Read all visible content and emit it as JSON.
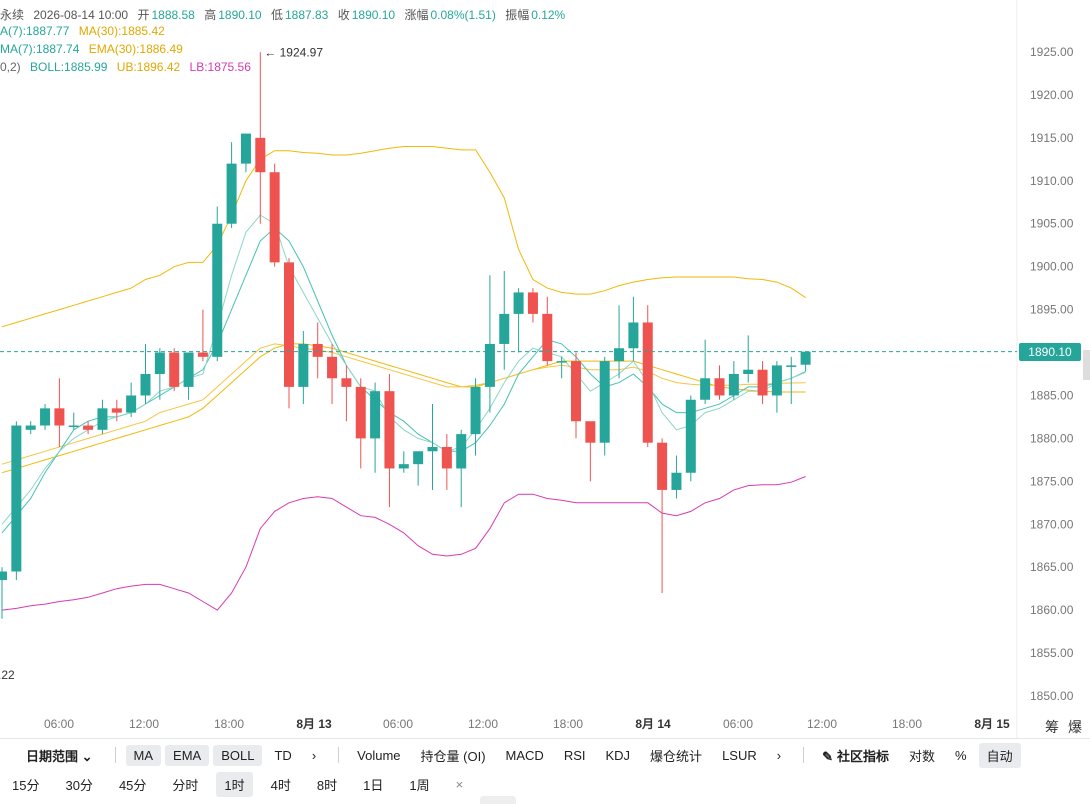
{
  "header": {
    "symbol": "永续",
    "datetime": "2026-08-14 10:00",
    "open_label": "开",
    "open": "1888.58",
    "high_label": "高",
    "high": "1890.10",
    "low_label": "低",
    "low": "1887.83",
    "close_label": "收",
    "close": "1890.10",
    "change_label": "涨幅",
    "change": "0.08%(1.51)",
    "amp_label": "振幅",
    "amp": "0.12%"
  },
  "indicators": {
    "ma7": "A(7):1887.77",
    "ma30": "MA(30):1885.42",
    "ema7": "MA(7):1887.74",
    "ema30": "EMA(30):1886.49",
    "boll_prefix": "0,2)",
    "boll": "BOLL:1885.99",
    "ub": "UB:1896.42",
    "lb": "LB:1875.56"
  },
  "colors": {
    "up": "#26a69a",
    "down": "#ef5350",
    "ma_fast": "#48c1b4",
    "ma_slow": "#f0b90b",
    "ub": "#f0b90b",
    "lb": "#d63bb0",
    "boll_mid": "#8bd7c8",
    "last_line": "#26a69a"
  },
  "chart_data": {
    "type": "candlestick",
    "y_axis": {
      "min": 1850,
      "max": 1925,
      "ticks": [
        "1925.00",
        "1920.00",
        "1915.00",
        "1910.00",
        "1905.00",
        "1900.00",
        "1895.00",
        "1890.00",
        "1885.00",
        "1880.00",
        "1875.00",
        "1870.00",
        "1865.00",
        "1860.00",
        "1855.00",
        "1850.00"
      ]
    },
    "x_axis": {
      "labels": [
        "06:00",
        "12:00",
        "18:00",
        "8月 13",
        "06:00",
        "12:00",
        "18:00",
        "8月 14",
        "06:00",
        "12:00",
        "18:00",
        "8月 15"
      ],
      "bold": [
        "8月 13",
        "8月 14",
        "8月 15"
      ]
    },
    "last_price": "1890.10",
    "high_marker": "1924.97",
    "low_marker": ".22",
    "candles": [
      [
        1863.5,
        1864.5,
        1859.0,
        1865.0
      ],
      [
        1864.5,
        1881.5,
        1863.5,
        1882.0
      ],
      [
        1881.0,
        1881.5,
        1880.5,
        1882.0
      ],
      [
        1881.5,
        1883.5,
        1881.0,
        1884.0
      ],
      [
        1883.5,
        1881.5,
        1879.0,
        1887.0
      ],
      [
        1881.5,
        1881.5,
        1881.0,
        1883.0
      ],
      [
        1881.5,
        1881.0,
        1880.5,
        1882.0
      ],
      [
        1881.0,
        1883.5,
        1880.5,
        1884.5
      ],
      [
        1883.5,
        1883.0,
        1882.0,
        1884.5
      ],
      [
        1883.0,
        1885.0,
        1882.5,
        1886.5
      ],
      [
        1885.0,
        1887.5,
        1884.0,
        1891.0
      ],
      [
        1887.5,
        1890.0,
        1884.5,
        1890.5
      ],
      [
        1890.0,
        1886.0,
        1885.5,
        1890.5
      ],
      [
        1886.0,
        1890.0,
        1884.5,
        1890.0
      ],
      [
        1890.0,
        1889.5,
        1889.0,
        1895.0
      ],
      [
        1889.5,
        1905.0,
        1889.0,
        1907.0
      ],
      [
        1905.0,
        1912.0,
        1904.5,
        1914.5
      ],
      [
        1912.0,
        1915.5,
        1911.0,
        1915.5
      ],
      [
        1915.0,
        1911.0,
        1905.0,
        1924.97
      ],
      [
        1911.0,
        1900.5,
        1900.0,
        1912.0
      ],
      [
        1900.5,
        1886.0,
        1883.5,
        1901.0
      ],
      [
        1886.0,
        1891.0,
        1884.0,
        1892.5
      ],
      [
        1891.0,
        1889.5,
        1887.0,
        1893.5
      ],
      [
        1889.5,
        1887.0,
        1884.0,
        1891.0
      ],
      [
        1887.0,
        1886.0,
        1882.0,
        1888.5
      ],
      [
        1886.0,
        1880.0,
        1876.5,
        1887.0
      ],
      [
        1880.0,
        1885.5,
        1876.0,
        1886.5
      ],
      [
        1885.5,
        1876.5,
        1872.0,
        1887.5
      ],
      [
        1876.5,
        1877.0,
        1876.0,
        1878.5
      ],
      [
        1877.0,
        1878.5,
        1874.5,
        1878.5
      ],
      [
        1878.5,
        1879.0,
        1874.0,
        1884.0
      ],
      [
        1879.0,
        1876.5,
        1874.0,
        1880.5
      ],
      [
        1876.5,
        1880.5,
        1872.0,
        1881.0
      ],
      [
        1880.5,
        1886.0,
        1878.0,
        1887.0
      ],
      [
        1886.0,
        1891.0,
        1883.0,
        1899.0
      ],
      [
        1891.0,
        1894.5,
        1888.0,
        1899.5
      ],
      [
        1894.5,
        1897.0,
        1890.0,
        1897.5
      ],
      [
        1897.0,
        1894.5,
        1893.5,
        1897.5
      ],
      [
        1894.5,
        1889.0,
        1888.5,
        1896.5
      ],
      [
        1889.0,
        1889.0,
        1887.0,
        1889.5
      ],
      [
        1889.0,
        1882.0,
        1880.0,
        1890.0
      ],
      [
        1882.0,
        1879.5,
        1875.0,
        1881.5
      ],
      [
        1879.5,
        1889.0,
        1878.0,
        1889.5
      ],
      [
        1889.0,
        1890.5,
        1887.0,
        1895.5
      ],
      [
        1890.5,
        1893.5,
        1889.0,
        1896.5
      ],
      [
        1893.5,
        1879.5,
        1879.0,
        1895.5
      ],
      [
        1879.5,
        1874.0,
        1862.0,
        1880.0
      ],
      [
        1874.0,
        1876.0,
        1873.0,
        1878.0
      ],
      [
        1876.0,
        1884.5,
        1875.0,
        1885.0
      ],
      [
        1884.5,
        1887.0,
        1884.0,
        1891.5
      ],
      [
        1887.0,
        1885.0,
        1884.5,
        1888.5
      ],
      [
        1885.0,
        1887.5,
        1884.5,
        1889.0
      ],
      [
        1887.5,
        1888.0,
        1886.5,
        1892.0
      ],
      [
        1888.0,
        1885.0,
        1884.0,
        1889.0
      ],
      [
        1885.0,
        1888.5,
        1883.0,
        1889.0
      ],
      [
        1888.5,
        1888.5,
        1884.0,
        1889.5
      ],
      [
        1888.58,
        1890.1,
        1887.83,
        1890.1
      ]
    ],
    "ma_fast": [
      1869,
      1871,
      1873,
      1876,
      1878.5,
      1881,
      1882,
      1882.5,
      1882.5,
      1883,
      1884,
      1885,
      1886,
      1887,
      1888,
      1891,
      1895,
      1899,
      1903,
      1904.5,
      1903,
      1900,
      1896,
      1892,
      1888.5,
      1886,
      1884.5,
      1883,
      1882,
      1880.5,
      1879.5,
      1878.5,
      1878.5,
      1879.5,
      1881.5,
      1884,
      1887.5,
      1889.5,
      1891.5,
      1891,
      1889.5,
      1887.5,
      1886,
      1886.5,
      1887.5,
      1886,
      1884,
      1883,
      1883,
      1883.5,
      1884,
      1885,
      1886,
      1886,
      1886.5,
      1887,
      1887.8
    ],
    "ma_slow": [
      1876,
      1876.5,
      1877,
      1877.5,
      1878,
      1878.5,
      1879,
      1879.5,
      1880,
      1880.5,
      1881,
      1881.5,
      1882,
      1882.5,
      1883.5,
      1885,
      1886.5,
      1888,
      1889.5,
      1890.5,
      1891,
      1891,
      1890.8,
      1890.5,
      1890,
      1889.5,
      1889,
      1888.5,
      1888,
      1887.5,
      1887,
      1886.5,
      1886,
      1886,
      1886.5,
      1887,
      1887.5,
      1888,
      1888.5,
      1889,
      1889,
      1889,
      1889,
      1889,
      1889,
      1888.5,
      1888,
      1887.5,
      1887,
      1886.5,
      1886,
      1885.8,
      1885.6,
      1885.5,
      1885.4,
      1885.4,
      1885.4
    ],
    "ema_fast": [
      1870,
      1872,
      1874,
      1876.5,
      1878.5,
      1880,
      1881,
      1882,
      1882.5,
      1883,
      1884,
      1885.5,
      1886,
      1887,
      1887.5,
      1893,
      1899,
      1904,
      1906,
      1905,
      1900,
      1897,
      1894,
      1891,
      1888.5,
      1886,
      1885.5,
      1882.5,
      1881,
      1880,
      1879.5,
      1878.5,
      1879,
      1881,
      1883.5,
      1886.5,
      1889,
      1890.5,
      1890,
      1889.5,
      1887.5,
      1885.5,
      1886.5,
      1887.5,
      1889,
      1886.5,
      1883,
      1881,
      1881.5,
      1883,
      1883.5,
      1884.5,
      1885.5,
      1885.5,
      1886.5,
      1887,
      1887.7
    ],
    "ema_slow": [
      1877,
      1877.5,
      1878,
      1878.5,
      1879,
      1879.5,
      1880,
      1880.5,
      1881,
      1881.5,
      1882,
      1883,
      1883.5,
      1884,
      1884.5,
      1886,
      1887.5,
      1889,
      1890.5,
      1891,
      1890.8,
      1890.5,
      1890.3,
      1890,
      1889.5,
      1889,
      1888.5,
      1888,
      1887.5,
      1887,
      1886.5,
      1886,
      1886,
      1886.2,
      1886.5,
      1887,
      1887.5,
      1888,
      1888.3,
      1888.5,
      1888.3,
      1888,
      1888,
      1888,
      1888.3,
      1887.8,
      1887,
      1886.5,
      1886.3,
      1886.2,
      1886.2,
      1886.2,
      1886.3,
      1886.3,
      1886.4,
      1886.45,
      1886.49
    ],
    "boll_ub": [
      1893,
      1893.5,
      1894,
      1894.5,
      1895,
      1895.5,
      1896,
      1896.5,
      1897,
      1897.5,
      1898.5,
      1899,
      1900,
      1900.5,
      1900.5,
      1902.5,
      1906,
      1910,
      1912.5,
      1913.5,
      1913.5,
      1913.3,
      1913.2,
      1913,
      1913,
      1913.2,
      1913.5,
      1913.8,
      1914,
      1914,
      1914,
      1913.8,
      1913.6,
      1913.6,
      1911,
      1908,
      1902,
      1898.5,
      1897.5,
      1897,
      1896.8,
      1896.8,
      1897.2,
      1897.8,
      1898.2,
      1898.5,
      1898.7,
      1898.8,
      1898.8,
      1898.8,
      1898.8,
      1898.8,
      1898.6,
      1898.5,
      1898.2,
      1897.5,
      1896.4
    ],
    "boll_lb": [
      1860,
      1860.2,
      1860.5,
      1860.7,
      1861,
      1861.2,
      1861.5,
      1862,
      1862.5,
      1862.8,
      1863,
      1863,
      1862.5,
      1862,
      1861,
      1860,
      1862,
      1865,
      1869.5,
      1871.5,
      1872.5,
      1873,
      1873.2,
      1873,
      1872,
      1871,
      1870.8,
      1870,
      1869,
      1867.5,
      1866.5,
      1866.3,
      1866.5,
      1867.2,
      1869.5,
      1872.5,
      1873.5,
      1873.5,
      1873,
      1872.8,
      1872.5,
      1872.5,
      1872.5,
      1872.5,
      1872.5,
      1872.5,
      1871.3,
      1871,
      1871.5,
      1872.5,
      1873,
      1874,
      1874.5,
      1874.6,
      1874.6,
      1874.9,
      1875.56
    ]
  },
  "toolbar": {
    "date_range": "日期范围",
    "chevron": "⌄",
    "ma": "MA",
    "ema": "EMA",
    "boll": "BOLL",
    "td": "TD",
    "more1": "›",
    "volume": "Volume",
    "oi": "持仓量 (OI)",
    "macd": "MACD",
    "rsi": "RSI",
    "kdj": "KDJ",
    "liq": "爆仓统计",
    "lsur": "LSUR",
    "more2": "›",
    "community": "社区指标",
    "log": "对数",
    "pct": "%",
    "auto": "自动",
    "extra1": "筹",
    "extra2": "爆"
  },
  "intervals": [
    "15分",
    "30分",
    "45分",
    "分时",
    "1时",
    "4时",
    "8时",
    "1日",
    "1周"
  ],
  "active_interval": "1时",
  "close_symbol": "×"
}
